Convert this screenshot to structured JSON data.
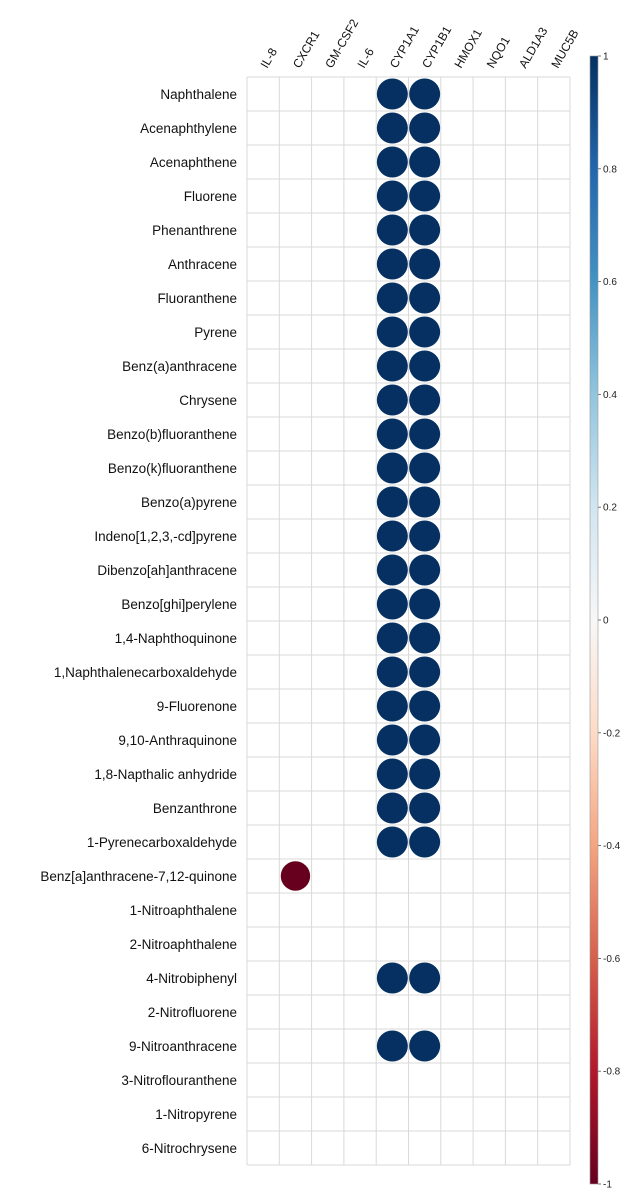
{
  "chart_data": {
    "type": "heatmap",
    "title": "",
    "columns": [
      "IL-8",
      "CXCR1",
      "GM-CSF2",
      "IL-6",
      "CYP1A1",
      "CYP1B1",
      "HMOX1",
      "NQO1",
      "ALD1A3",
      "MUC5B"
    ],
    "rows": [
      "Naphthalene",
      "Acenaphthylene",
      "Acenaphthene",
      "Fluorene",
      "Phenanthrene",
      "Anthracene",
      "Fluoranthene",
      "Pyrene",
      "Benz(a)anthracene",
      "Chrysene",
      "Benzo(b)fluoranthene",
      "Benzo(k)fluoranthene",
      "Benzo(a)pyrene",
      "Indeno[1,2,3,-cd]pyrene",
      "Dibenzo[ah]anthracene",
      "Benzo[ghi]perylene",
      "1,4-Naphthoquinone",
      "1,Naphthalenecarboxaldehyde",
      "9-Fluorenone",
      "9,10-Anthraquinone",
      "1,8-Napthalic anhydride",
      "Benzanthrone",
      "1-Pyrenecarboxaldehyde",
      "Benz[a]anthracene-7,12-quinone",
      "1-Nitroaphthalene",
      "2-Nitroaphthalene",
      "4-Nitrobiphenyl",
      "2-Nitrofluorene",
      "9-Nitroanthracene",
      "3-Nitroflouranthene",
      "1-Nitropyrene",
      "6-Nitrochrysene"
    ],
    "values": [
      [
        0,
        0,
        0,
        0,
        1,
        1,
        0,
        0,
        0,
        0
      ],
      [
        0,
        0,
        0,
        0,
        1,
        1,
        0,
        0,
        0,
        0
      ],
      [
        0,
        0,
        0,
        0,
        1,
        1,
        0,
        0,
        0,
        0
      ],
      [
        0,
        0,
        0,
        0,
        1,
        1,
        0,
        0,
        0,
        0
      ],
      [
        0,
        0,
        0,
        0,
        1,
        1,
        0,
        0,
        0,
        0
      ],
      [
        0,
        0,
        0,
        0,
        1,
        1,
        0,
        0,
        0,
        0
      ],
      [
        0,
        0,
        0,
        0,
        1,
        1,
        0,
        0,
        0,
        0
      ],
      [
        0,
        0,
        0,
        0,
        1,
        1,
        0,
        0,
        0,
        0
      ],
      [
        0,
        0,
        0,
        0,
        1,
        1,
        0,
        0,
        0,
        0
      ],
      [
        0,
        0,
        0,
        0,
        1,
        1,
        0,
        0,
        0,
        0
      ],
      [
        0,
        0,
        0,
        0,
        1,
        1,
        0,
        0,
        0,
        0
      ],
      [
        0,
        0,
        0,
        0,
        1,
        1,
        0,
        0,
        0,
        0
      ],
      [
        0,
        0,
        0,
        0,
        1,
        1,
        0,
        0,
        0,
        0
      ],
      [
        0,
        0,
        0,
        0,
        1,
        1,
        0,
        0,
        0,
        0
      ],
      [
        0,
        0,
        0,
        0,
        1,
        1,
        0,
        0,
        0,
        0
      ],
      [
        0,
        0,
        0,
        0,
        1,
        1,
        0,
        0,
        0,
        0
      ],
      [
        0,
        0,
        0,
        0,
        1,
        1,
        0,
        0,
        0,
        0
      ],
      [
        0,
        0,
        0,
        0,
        1,
        1,
        0,
        0,
        0,
        0
      ],
      [
        0,
        0,
        0,
        0,
        1,
        1,
        0,
        0,
        0,
        0
      ],
      [
        0,
        0,
        0,
        0,
        1,
        1,
        0,
        0,
        0,
        0
      ],
      [
        0,
        0,
        0,
        0,
        1,
        1,
        0,
        0,
        0,
        0
      ],
      [
        0,
        0,
        0,
        0,
        1,
        1,
        0,
        0,
        0,
        0
      ],
      [
        0,
        0,
        0,
        0,
        1,
        1,
        0,
        0,
        0,
        0
      ],
      [
        0,
        -0.9,
        0,
        0,
        0,
        0,
        0,
        0,
        0,
        0
      ],
      [
        0,
        0,
        0,
        0,
        0,
        0,
        0,
        0,
        0,
        0
      ],
      [
        0,
        0,
        0,
        0,
        0,
        0,
        0,
        0,
        0,
        0
      ],
      [
        0,
        0,
        0,
        0,
        1,
        1,
        0,
        0,
        0,
        0
      ],
      [
        0,
        0,
        0,
        0,
        0,
        0,
        0,
        0,
        0,
        0
      ],
      [
        0,
        0,
        0,
        0,
        1,
        1,
        0,
        0,
        0,
        0
      ],
      [
        0,
        0,
        0,
        0,
        0,
        0,
        0,
        0,
        0,
        0
      ],
      [
        0,
        0,
        0,
        0,
        0,
        0,
        0,
        0,
        0,
        0
      ],
      [
        0,
        0,
        0,
        0,
        0,
        0,
        0,
        0,
        0,
        0
      ]
    ],
    "color_range": [
      -1,
      1
    ],
    "colorbar_ticks": [
      "1",
      "0.8",
      "0.6",
      "0.4",
      "0.2",
      "0",
      "-0.2",
      "-0.4",
      "-0.6",
      "-0.8",
      "-1"
    ],
    "colors": {
      "positive": "#053061",
      "negative": "#67001f",
      "grid": "#d9d9d9",
      "gradient": [
        "#053061",
        "#2166ac",
        "#4393c3",
        "#92c5de",
        "#d1e5f0",
        "#f7f7f7",
        "#fddbc7",
        "#f4a582",
        "#d6604d",
        "#b2182b",
        "#67001f"
      ]
    }
  }
}
